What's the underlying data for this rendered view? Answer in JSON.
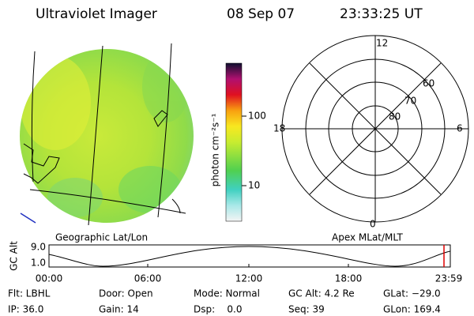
{
  "header": {
    "title": "Ultraviolet Imager",
    "date": "08 Sep 07",
    "time": "23:33:25 UT"
  },
  "colorbar": {
    "label": "photon cm⁻²s⁻¹",
    "ticks": [
      "100",
      "10"
    ]
  },
  "polar": {
    "mlt": [
      "12",
      "18",
      "6",
      "0"
    ],
    "mlat": [
      "60",
      "70",
      "80"
    ]
  },
  "orbit": {
    "left_label": "Geographic Lat/Lon",
    "right_label": "Apex MLat/MLT",
    "axis_label": "GC Alt",
    "yticks": [
      "9.0",
      "1.0"
    ],
    "xticks": [
      "00:00",
      "06:00",
      "12:00",
      "18:00",
      "23:59"
    ]
  },
  "info": [
    [
      "Flt: LBHL",
      "Door: Open",
      "Mode: Normal",
      "GC Alt: 4.2 Re",
      "GLat: −29.0"
    ],
    [
      "IP: 36.0",
      "Gain: 14",
      "Dsp:    0.0",
      "Seq: 39",
      "GLon: 169.4"
    ]
  ]
}
